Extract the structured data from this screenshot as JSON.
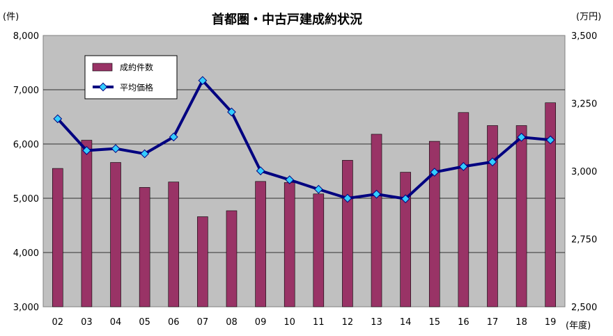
{
  "chart_data": {
    "type": "bar+line",
    "title": "首都圏・中古戸建成約状況",
    "left_unit": "(件)",
    "right_unit": "(万円)",
    "x_unit": "(年度)",
    "categories": [
      "02",
      "03",
      "04",
      "05",
      "06",
      "07",
      "08",
      "09",
      "10",
      "11",
      "12",
      "13",
      "14",
      "15",
      "16",
      "17",
      "18",
      "19"
    ],
    "left_ylim": [
      3000,
      8000
    ],
    "left_ticks": [
      "3,000",
      "4,000",
      "5,000",
      "6,000",
      "7,000",
      "8,000"
    ],
    "right_ylim": [
      2500,
      3500
    ],
    "right_ticks": [
      "2,500",
      "2,750",
      "3,000",
      "3,250",
      "3,500"
    ],
    "series": [
      {
        "name": "成約件数",
        "type": "bar",
        "axis": "left",
        "color": "#993366",
        "values": [
          5550,
          6070,
          5660,
          5200,
          5300,
          4660,
          4770,
          5310,
          5290,
          5080,
          5700,
          6180,
          5480,
          6050,
          6580,
          6340,
          6340,
          6760
        ]
      },
      {
        "name": "平均価格",
        "type": "line",
        "axis": "right",
        "color": "#000080",
        "marker_color": "#33CCFF",
        "values": [
          3193,
          3076,
          3083,
          3064,
          3126,
          3334,
          3218,
          3001,
          2968,
          2933,
          2900,
          2915,
          2898,
          2996,
          3017,
          3034,
          3125,
          3115
        ]
      }
    ],
    "plot_bg": "#C0C0C0",
    "legend_position": "top-left"
  }
}
